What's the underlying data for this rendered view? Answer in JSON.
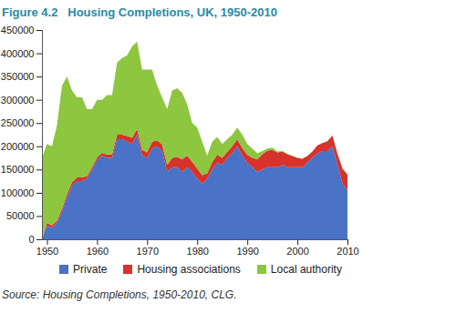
{
  "chart_data": {
    "type": "area",
    "stacked": true,
    "title": "Figure 4.2   Housing Completions, UK, 1950-2010",
    "source": "Source: Housing Completions, 1950-2010, CLG.",
    "legend": "bottom",
    "x": [
      1949,
      1950,
      1951,
      1952,
      1953,
      1954,
      1955,
      1956,
      1957,
      1958,
      1959,
      1960,
      1961,
      1962,
      1963,
      1964,
      1965,
      1966,
      1967,
      1968,
      1969,
      1970,
      1971,
      1972,
      1973,
      1974,
      1975,
      1976,
      1977,
      1978,
      1979,
      1980,
      1981,
      1982,
      1983,
      1984,
      1985,
      1986,
      1987,
      1988,
      1989,
      1990,
      1991,
      1992,
      1993,
      1994,
      1995,
      1996,
      1997,
      1998,
      1999,
      2000,
      2001,
      2002,
      2003,
      2004,
      2005,
      2006,
      2007,
      2008,
      2009,
      2010
    ],
    "series": [
      {
        "name": "Private",
        "color": "#4a72c6",
        "values": [
          0,
          30000,
          25000,
          35000,
          60000,
          90000,
          115000,
          125000,
          125000,
          130000,
          150000,
          170000,
          180000,
          175000,
          175000,
          215000,
          215000,
          210000,
          205000,
          225000,
          180000,
          175000,
          195000,
          200000,
          190000,
          145000,
          155000,
          155000,
          145000,
          155000,
          145000,
          130000,
          120000,
          130000,
          150000,
          165000,
          160000,
          175000,
          185000,
          200000,
          180000,
          165000,
          155000,
          145000,
          150000,
          155000,
          155000,
          155000,
          160000,
          155000,
          155000,
          155000,
          155000,
          165000,
          175000,
          185000,
          190000,
          190000,
          200000,
          160000,
          120000,
          105000
        ]
      },
      {
        "name": "Housing associations",
        "color": "#d7322b",
        "values": [
          1000,
          5000,
          5000,
          5000,
          6000,
          7000,
          8000,
          8000,
          8000,
          6000,
          5000,
          6000,
          6000,
          7000,
          8000,
          10000,
          10000,
          12000,
          13000,
          12000,
          12000,
          12000,
          15000,
          13000,
          14000,
          15000,
          20000,
          22000,
          27000,
          25000,
          22000,
          22000,
          18000,
          12000,
          16000,
          17000,
          15000,
          13000,
          15000,
          15000,
          16000,
          17000,
          20000,
          27000,
          33000,
          36000,
          37000,
          32000,
          29000,
          28000,
          24000,
          20000,
          18000,
          14000,
          14000,
          17000,
          17000,
          21000,
          23000,
          24000,
          32000,
          34000
        ]
      },
      {
        "name": "Local authority",
        "color": "#8dc63f",
        "values": [
          174000,
          170000,
          170000,
          205000,
          264000,
          253000,
          197000,
          172000,
          172000,
          144000,
          125000,
          124000,
          114000,
          128000,
          127000,
          155000,
          165000,
          173000,
          197000,
          188000,
          173000,
          178000,
          155000,
          117000,
          101000,
          120000,
          145000,
          148000,
          143000,
          110000,
          83000,
          88000,
          72000,
          38000,
          44000,
          38000,
          30000,
          27000,
          25000,
          25000,
          29000,
          23000,
          20000,
          13000,
          7000,
          4000,
          5000,
          2000,
          1500,
          1000,
          800,
          500,
          400,
          300,
          300,
          200,
          300,
          300,
          300,
          500,
          500,
          1000
        ]
      }
    ],
    "xlim": [
      1949,
      2010
    ],
    "xticks": [
      1950,
      1960,
      1970,
      1980,
      1990,
      2000,
      2010
    ],
    "ylim": [
      0,
      450000
    ],
    "yticks": [
      0,
      50000,
      100000,
      150000,
      200000,
      250000,
      300000,
      350000,
      400000,
      450000
    ],
    "grid": false
  }
}
